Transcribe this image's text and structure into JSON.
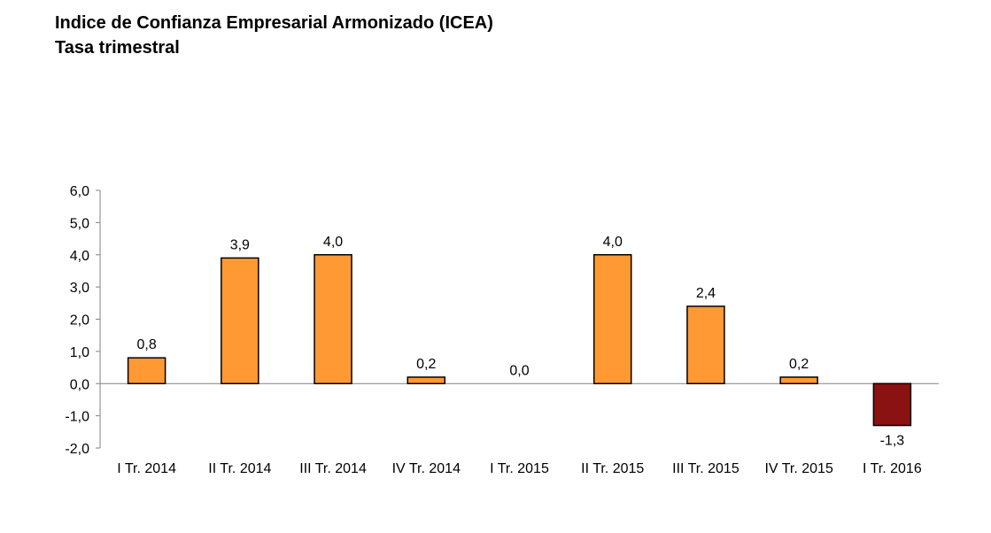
{
  "header": {
    "title": "Indice de Confianza Empresarial Armonizado (ICEA)",
    "subtitle": "Tasa trimestral"
  },
  "chart_data": {
    "type": "bar",
    "title": "Indice de Confianza Empresarial Armonizado (ICEA)",
    "subtitle": "Tasa trimestral",
    "xlabel": "",
    "ylabel": "",
    "categories": [
      "I Tr. 2014",
      "II Tr. 2014",
      "III Tr. 2014",
      "IV Tr. 2014",
      "I Tr. 2015",
      "II Tr. 2015",
      "III Tr. 2015",
      "IV Tr. 2015",
      "I Tr. 2016"
    ],
    "values": [
      0.8,
      3.9,
      4.0,
      0.2,
      0.0,
      4.0,
      2.4,
      0.2,
      -1.3
    ],
    "value_labels": [
      "0,8",
      "3,9",
      "4,0",
      "0,2",
      "0,0",
      "4,0",
      "2,4",
      "0,2",
      "-1,3"
    ],
    "ylim": [
      -2,
      6
    ],
    "yticks": [
      6,
      5,
      4,
      3,
      2,
      1,
      0,
      -1,
      -2
    ],
    "ytick_labels": [
      "6,0",
      "5,0",
      "4,0",
      "3,0",
      "2,0",
      "1,0",
      "0,0",
      "-1,0",
      "-2,0"
    ],
    "grid": false,
    "legend": "none",
    "colors": {
      "positive": "#FF9933",
      "negative": "#8B1212",
      "outline": "#000000"
    }
  }
}
